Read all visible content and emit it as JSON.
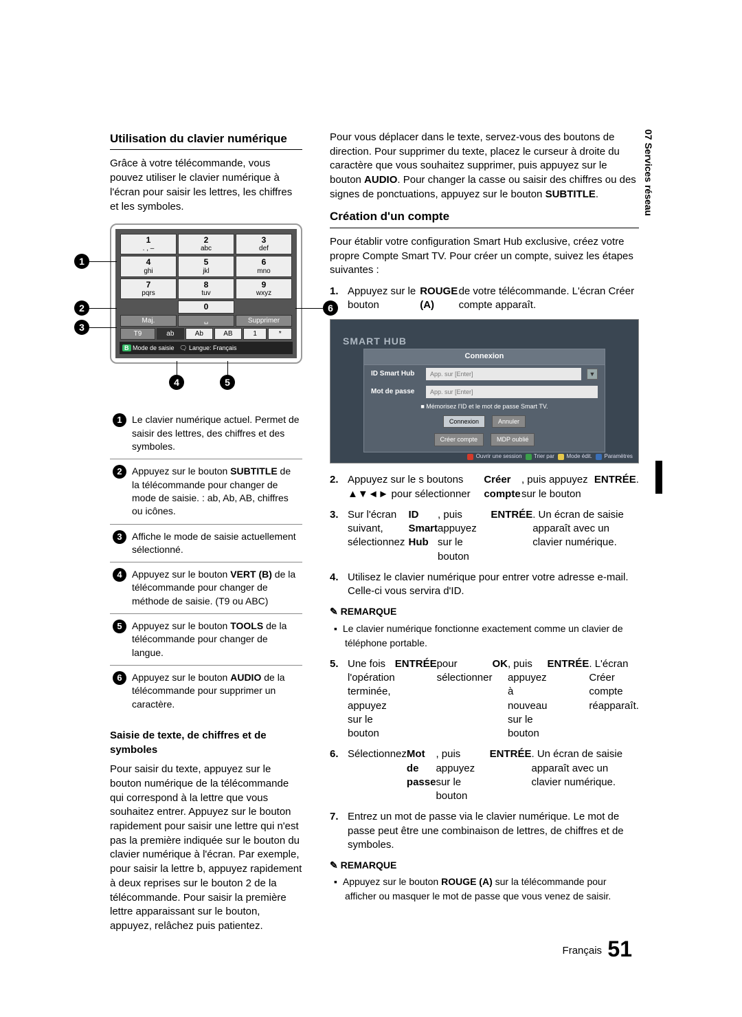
{
  "section_tab": "07  Services réseau",
  "left": {
    "h_keypad": "Utilisation du clavier numérique",
    "intro": "Grâce à votre télécommande, vous pouvez utiliser le clavier numérique à l'écran pour saisir les lettres, les chiffres et les symboles.",
    "keypad": {
      "rows": [
        [
          {
            "n": "1",
            "s": ". , –"
          },
          {
            "n": "2",
            "s": "abc"
          },
          {
            "n": "3",
            "s": "def"
          }
        ],
        [
          {
            "n": "4",
            "s": "ghi"
          },
          {
            "n": "5",
            "s": "jkl"
          },
          {
            "n": "6",
            "s": "mno"
          }
        ],
        [
          {
            "n": "7",
            "s": "pqrs"
          },
          {
            "n": "8",
            "s": "tuv"
          },
          {
            "n": "9",
            "s": "wxyz"
          }
        ]
      ],
      "zero": "0",
      "maj": "Maj.",
      "space": "␣",
      "del": "Supprimer",
      "modes": [
        "T9",
        "ab",
        "Ab",
        "AB",
        "1",
        "*"
      ],
      "footer_mode": "Mode de saisie",
      "footer_lang": "Langue: Français"
    },
    "callout_labels": [
      "1",
      "2",
      "3",
      "4",
      "5",
      "6"
    ],
    "desc": [
      "Le clavier numérique actuel.\nPermet de saisir des lettres, des chiffres et des symboles.",
      "Appuyez sur le bouton SUBTITLE de la télécommande pour changer de mode de saisie. : ab, Ab, AB, chiffres ou icônes.",
      "Affiche le mode de saisie actuellement sélectionné.",
      "Appuyez sur le bouton VERT (B) de la télécommande pour changer de méthode de saisie. (T9 ou ABC)",
      "Appuyez sur le bouton TOOLS de la télécommande pour changer de langue.",
      "Appuyez sur le bouton AUDIO de la télécommande pour supprimer un caractère."
    ],
    "sub_input": "Saisie de texte, de chiffres et de symboles",
    "input_para": "Pour saisir du texte, appuyez sur le bouton numérique de la télécommande qui correspond à la lettre que vous souhaitez entrer. Appuyez sur le bouton rapidement pour saisir une lettre qui n'est pas la première indiquée sur le bouton du clavier numérique à l'écran. Par exemple, pour saisir la lettre b, appuyez rapidement à deux reprises sur le bouton 2 de la télécommande. Pour saisir la première lettre apparaissant sur le bouton, appuyez, relâchez puis patientez."
  },
  "right": {
    "move_para": "Pour vous déplacer dans le texte, servez-vous des boutons de direction. Pour supprimer du texte, placez le curseur à droite du caractère que vous souhaitez supprimer, puis appuyez sur le bouton AUDIO. Pour changer la casse ou saisir des chiffres ou des signes de ponctuations, appuyez sur le bouton SUBTITLE.",
    "h_account": "Création d'un compte",
    "account_intro": "Pour établir votre configuration Smart Hub exclusive, créez votre propre Compte Smart TV. Pour créer un compte, suivez les étapes suivantes :",
    "login": {
      "brand": "SMART HUB",
      "panel_title": "Connexion",
      "id_label": "ID Smart Hub",
      "id_ph": "App. sur [Enter]",
      "pw_label": "Mot de passe",
      "pw_ph": "App. sur [Enter]",
      "remember": "Mémorisez l'ID et le mot de passe Smart TV.",
      "btn_login": "Connexion",
      "btn_cancel": "Annuler",
      "btn_create": "Créer compte",
      "btn_forgot": "MDP oublié",
      "footer_items": [
        "Ouvrir une session",
        "Trier par",
        "Mode édit.",
        "Paramètres"
      ],
      "footer_colors": [
        "#d43a2a",
        "#3b9e4a",
        "#e6c84a",
        "#3a6fb7"
      ]
    },
    "steps_a": [
      "Appuyez sur le bouton ROUGE (A) de votre télécommande. L'écran Créer compte apparaît."
    ],
    "steps_b": [
      "Appuyez sur le s boutons ▲▼◄► pour sélectionner Créer compte, puis appuyez sur le bouton ENTRÉE.",
      "Sur l'écran suivant, sélectionnez ID Smart Hub, puis appuyez sur le bouton ENTRÉE. Un écran de saisie apparaît avec un clavier numérique.",
      "Utilisez le clavier numérique pour entrer votre adresse e-mail. Celle-ci vous servira d'ID."
    ],
    "note1_label": "REMARQUE",
    "note1": "Le clavier numérique fonctionne exactement comme un clavier de téléphone portable.",
    "steps_c": [
      "Une fois l'opération terminée, appuyez sur le bouton ENTRÉE pour sélectionner OK, puis appuyez à nouveau sur le bouton ENTRÉE. L'écran Créer compte réapparaît.",
      "Sélectionnez Mot de passe, puis appuyez sur le bouton ENTRÉE. Un écran de saisie apparaît avec un clavier numérique.",
      "Entrez un mot de passe via le clavier numérique. Le mot de passe peut être une combinaison de lettres, de chiffres et de symboles."
    ],
    "note2_label": "REMARQUE",
    "note2": "Appuyez sur le bouton ROUGE (A) sur la télécommande pour afficher ou masquer le mot de passe que vous venez de saisir."
  },
  "footer_lang": "Français",
  "footer_page": "51"
}
